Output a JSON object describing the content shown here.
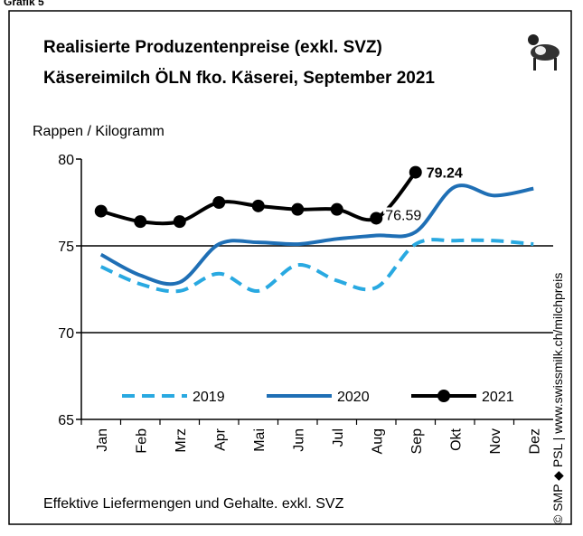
{
  "chart_data": {
    "type": "line",
    "label": "Grafik 5",
    "title": [
      "Realisierte Produzentenpreise (exkl. SVZ)",
      "Käsereimilch ÖLN fko. Käserei, September 2021"
    ],
    "y_label": "Rappen / Kilogramm",
    "footnote": "Effektive Liefermengen und Gehalte. exkl. SVZ",
    "source": "© SMP ◆ PSL | www.swissmilk.ch/milchpreis",
    "categories": [
      "Jan",
      "Feb",
      "Mrz",
      "Apr",
      "Mai",
      "Jun",
      "Jul",
      "Aug",
      "Sep",
      "Okt",
      "Nov",
      "Dez"
    ],
    "ylim": [
      65,
      80
    ],
    "yticks": [
      65,
      70,
      75,
      80
    ],
    "grid": true,
    "series": [
      {
        "name": "2019",
        "color": "#29a9e1",
        "dashed": true,
        "values": [
          73.8,
          72.8,
          72.4,
          73.4,
          72.4,
          73.9,
          73.0,
          72.6,
          75.1,
          75.3,
          75.3,
          75.1
        ]
      },
      {
        "name": "2020",
        "color": "#1f6fb5",
        "values": [
          74.5,
          73.3,
          72.9,
          75.1,
          75.2,
          75.1,
          75.4,
          75.6,
          75.8,
          78.4,
          77.9,
          78.3
        ]
      },
      {
        "name": "2021",
        "color": "#000000",
        "markers": true,
        "values": [
          77.0,
          76.4,
          76.4,
          77.5,
          77.3,
          77.1,
          77.1,
          76.59,
          79.24,
          null,
          null,
          null
        ]
      }
    ]
  }
}
